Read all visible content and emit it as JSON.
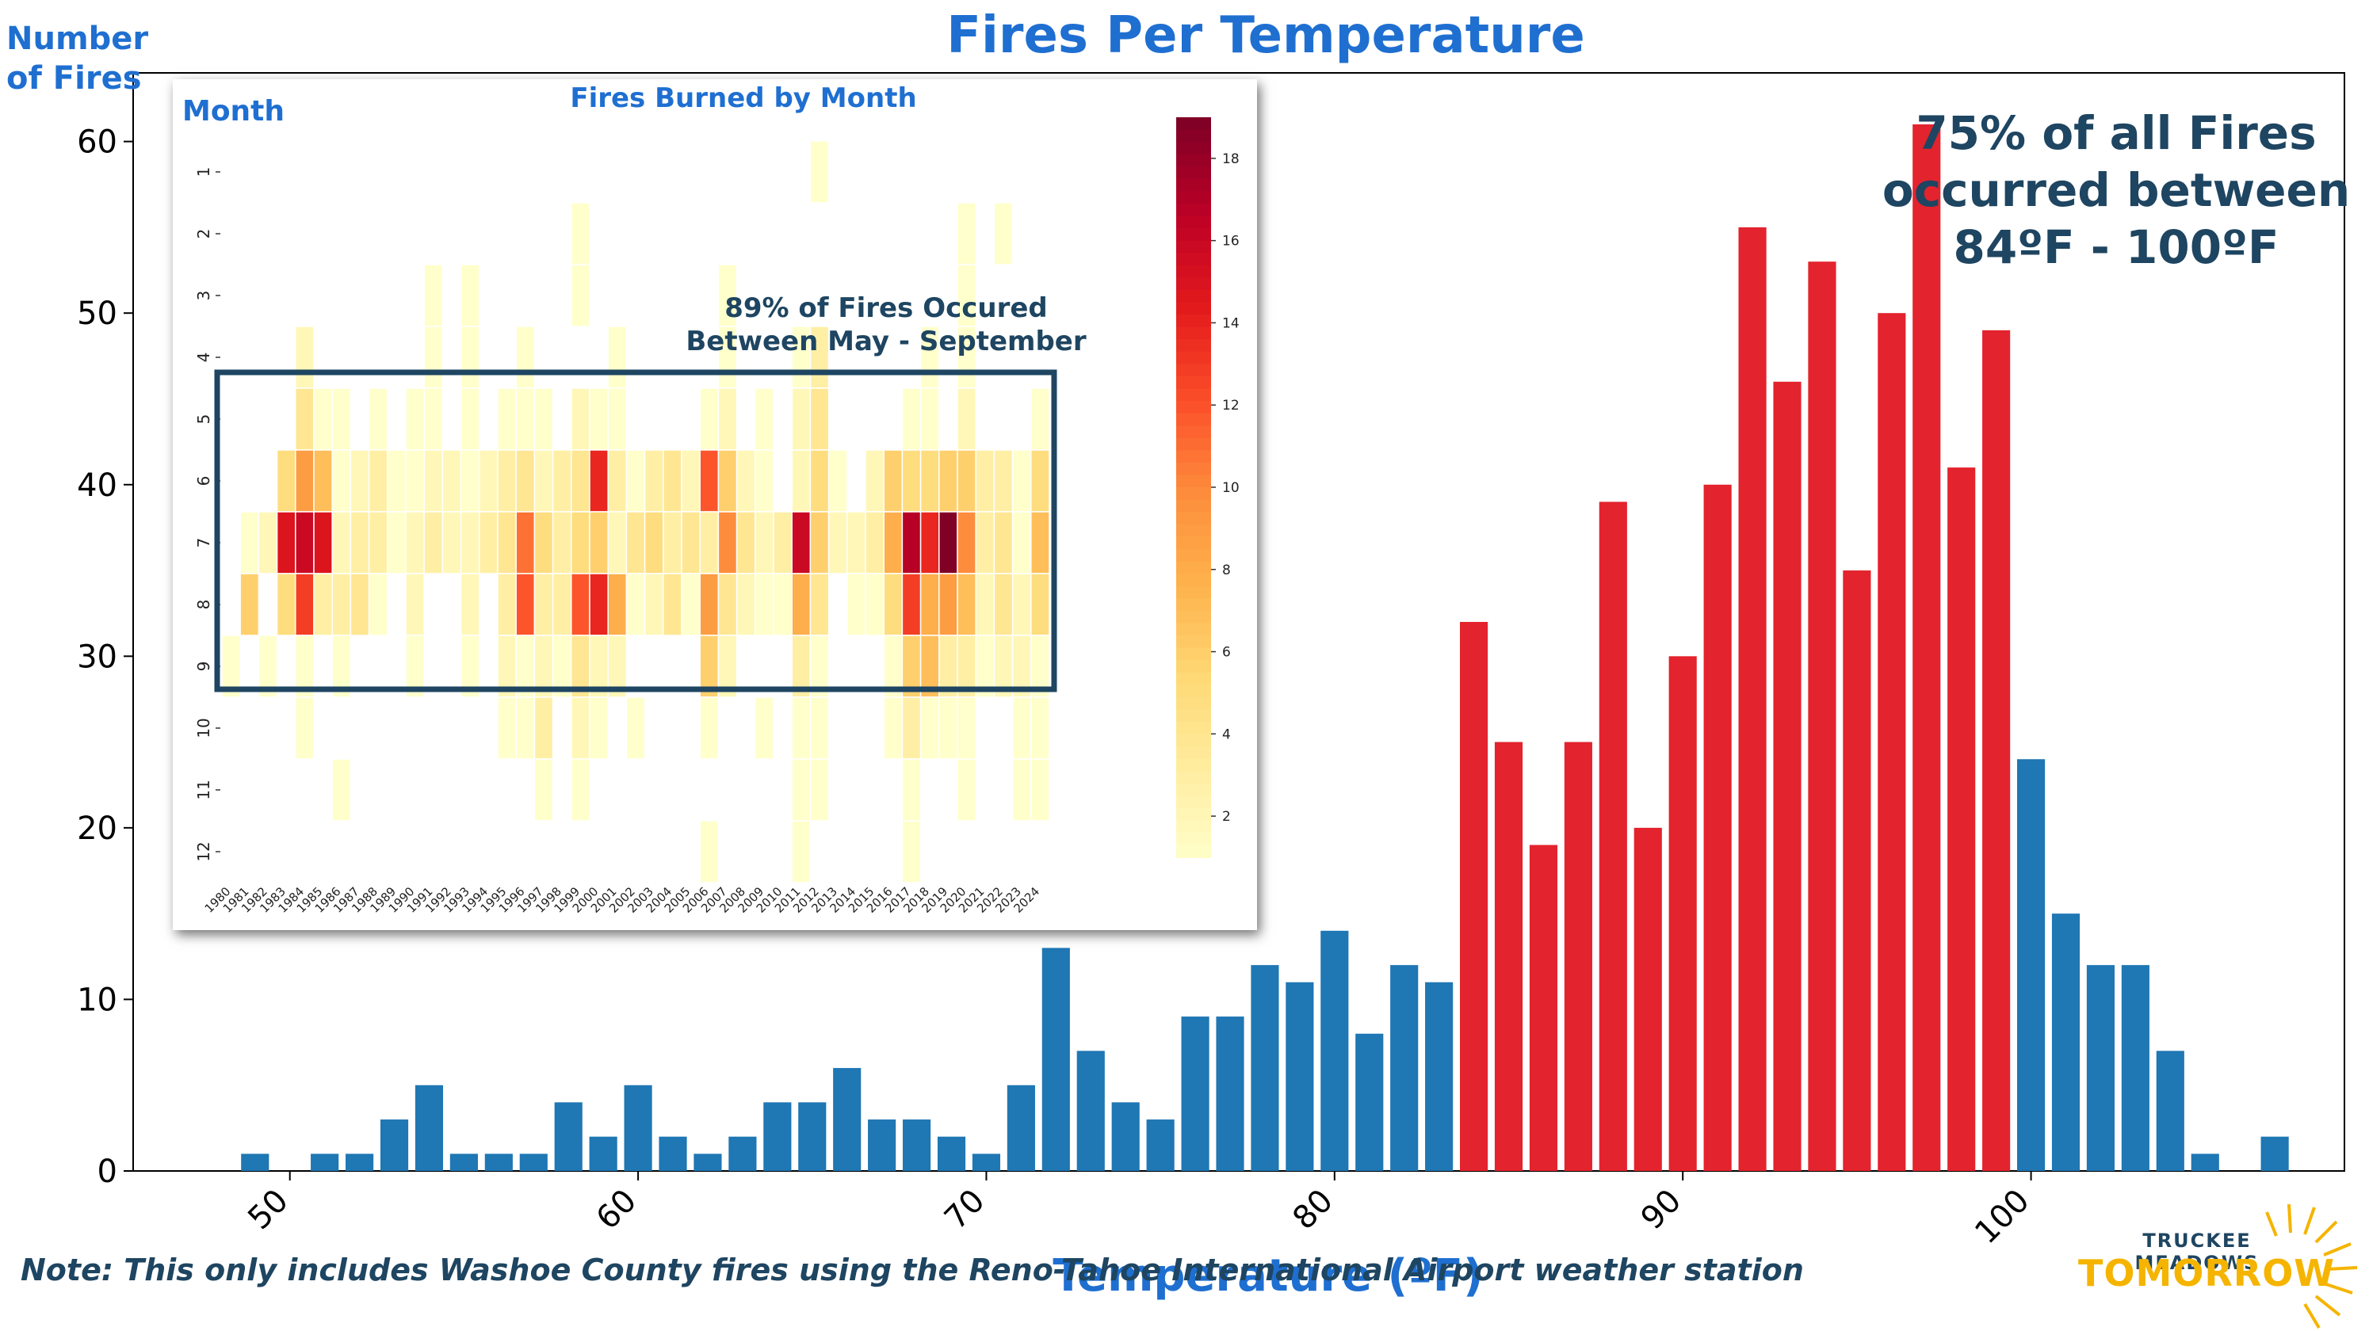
{
  "chart_data": [
    {
      "type": "bar",
      "title": "Fires Per Temperature",
      "xlabel": "Temperature (ºF)",
      "ylabel": "Number\nof Fires",
      "xlim": [
        45.5,
        109
      ],
      "ylim": [
        0,
        64
      ],
      "xticks": [
        50,
        60,
        70,
        80,
        90,
        100
      ],
      "yticks": [
        0,
        10,
        20,
        30,
        40,
        50,
        60
      ],
      "highlight_range": [
        84,
        99
      ],
      "colors": {
        "default": "#1f77b4",
        "highlight": "#e3232d"
      },
      "x": [
        49,
        50,
        51,
        52,
        53,
        54,
        55,
        56,
        57,
        58,
        59,
        60,
        61,
        62,
        63,
        64,
        65,
        66,
        67,
        68,
        69,
        70,
        71,
        72,
        73,
        74,
        75,
        76,
        77,
        78,
        79,
        80,
        81,
        82,
        83,
        84,
        85,
        86,
        87,
        88,
        89,
        90,
        91,
        92,
        93,
        94,
        95,
        96,
        97,
        98,
        99,
        100,
        101,
        102,
        103,
        104,
        105,
        106,
        107
      ],
      "values": [
        1,
        0,
        1,
        1,
        3,
        5,
        1,
        1,
        1,
        4,
        2,
        5,
        2,
        1,
        2,
        4,
        4,
        6,
        3,
        3,
        2,
        1,
        5,
        13,
        7,
        4,
        3,
        9,
        9,
        12,
        11,
        14,
        8,
        12,
        11,
        32,
        25,
        19,
        25,
        39,
        20,
        30,
        40,
        55,
        46,
        53,
        35,
        50,
        61,
        41,
        49,
        24,
        15,
        12,
        12,
        7,
        1,
        0,
        2
      ],
      "annotation": "75% of all Fires occurred between 84ºF - 100ºF"
    },
    {
      "type": "heatmap",
      "title": "Fires Burned by Month",
      "ylabel": "Month",
      "x": [
        "1980",
        "1981",
        "1982",
        "1983",
        "1984",
        "1985",
        "1986",
        "1987",
        "1988",
        "1989",
        "1990",
        "1991",
        "1992",
        "1993",
        "1994",
        "1995",
        "1996",
        "1997",
        "1998",
        "1999",
        "2000",
        "2001",
        "2002",
        "2003",
        "2004",
        "2005",
        "2006",
        "2007",
        "2008",
        "2009",
        "2010",
        "2011",
        "2012",
        "2013",
        "2014",
        "2015",
        "2016",
        "2017",
        "2018",
        "2019",
        "2020",
        "2021",
        "2022",
        "2023",
        "2024"
      ],
      "y": [
        "1",
        "2",
        "3",
        "4",
        "5",
        "6",
        "7",
        "8",
        "9",
        "10",
        "11",
        "12"
      ],
      "colorbar_ticks": [
        2,
        4,
        6,
        8,
        10,
        12,
        14,
        16,
        18
      ],
      "vmin": 1,
      "vmax": 19,
      "colormap": "YlOrRd",
      "values": [
        [
          0,
          0,
          0,
          0,
          0,
          0,
          0,
          0,
          0,
          0,
          0,
          0,
          0,
          0,
          0,
          0,
          0,
          0,
          0,
          0,
          0,
          0,
          0,
          0,
          0,
          0,
          0,
          0,
          0,
          0,
          0,
          0,
          1,
          0,
          0,
          0,
          0,
          0,
          0,
          0,
          0,
          0,
          0,
          0,
          0
        ],
        [
          0,
          0,
          0,
          0,
          0,
          0,
          0,
          0,
          0,
          0,
          0,
          0,
          0,
          0,
          0,
          0,
          0,
          0,
          0,
          1,
          0,
          0,
          0,
          0,
          0,
          0,
          0,
          0,
          0,
          0,
          0,
          0,
          0,
          0,
          0,
          0,
          0,
          0,
          0,
          0,
          1,
          0,
          1,
          0,
          0
        ],
        [
          0,
          0,
          0,
          0,
          0,
          0,
          0,
          0,
          0,
          0,
          0,
          1,
          0,
          1,
          0,
          0,
          0,
          0,
          0,
          1,
          0,
          0,
          0,
          0,
          0,
          0,
          0,
          1,
          0,
          0,
          0,
          0,
          0,
          0,
          0,
          0,
          0,
          0,
          0,
          0,
          1,
          0,
          0,
          0,
          0
        ],
        [
          0,
          0,
          0,
          0,
          2,
          0,
          0,
          0,
          0,
          0,
          0,
          1,
          0,
          1,
          0,
          0,
          1,
          0,
          0,
          0,
          0,
          1,
          0,
          0,
          0,
          0,
          0,
          1,
          0,
          0,
          0,
          1,
          3,
          0,
          0,
          0,
          0,
          0,
          1,
          0,
          1,
          0,
          0,
          0,
          0
        ],
        [
          0,
          0,
          0,
          0,
          4,
          1,
          1,
          0,
          1,
          0,
          1,
          1,
          0,
          1,
          0,
          1,
          1,
          1,
          0,
          2,
          1,
          1,
          0,
          0,
          0,
          0,
          1,
          2,
          0,
          1,
          0,
          2,
          4,
          0,
          0,
          0,
          0,
          1,
          1,
          0,
          2,
          0,
          0,
          0,
          1
        ],
        [
          0,
          0,
          0,
          5,
          9,
          7,
          1,
          2,
          3,
          1,
          1,
          2,
          2,
          1,
          2,
          3,
          4,
          2,
          3,
          4,
          14,
          3,
          1,
          3,
          4,
          2,
          12,
          6,
          2,
          1,
          0,
          2,
          5,
          1,
          0,
          2,
          6,
          5,
          5,
          6,
          6,
          3,
          3,
          1,
          5
        ],
        [
          0,
          1,
          2,
          15,
          16,
          15,
          2,
          3,
          3,
          1,
          2,
          3,
          2,
          2,
          3,
          4,
          11,
          5,
          3,
          5,
          6,
          2,
          4,
          5,
          3,
          4,
          3,
          10,
          4,
          2,
          3,
          16,
          6,
          2,
          2,
          3,
          8,
          17,
          14,
          19,
          10,
          3,
          4,
          1,
          7
        ],
        [
          0,
          6,
          0,
          5,
          13,
          3,
          3,
          4,
          1,
          0,
          2,
          0,
          0,
          2,
          0,
          3,
          12,
          3,
          3,
          12,
          14,
          8,
          1,
          2,
          4,
          1,
          9,
          4,
          2,
          1,
          1,
          8,
          4,
          0,
          1,
          1,
          5,
          13,
          8,
          9,
          7,
          2,
          4,
          2,
          5
        ],
        [
          1,
          0,
          1,
          0,
          1,
          0,
          1,
          0,
          0,
          0,
          1,
          0,
          0,
          1,
          0,
          2,
          1,
          2,
          1,
          4,
          2,
          2,
          0,
          0,
          0,
          0,
          6,
          2,
          0,
          0,
          0,
          3,
          1,
          0,
          0,
          0,
          1,
          6,
          7,
          3,
          3,
          1,
          2,
          2,
          1
        ],
        [
          0,
          0,
          0,
          0,
          1,
          0,
          0,
          0,
          0,
          0,
          0,
          0,
          0,
          0,
          0,
          1,
          1,
          3,
          0,
          2,
          1,
          0,
          1,
          0,
          0,
          0,
          1,
          0,
          0,
          1,
          0,
          1,
          1,
          0,
          0,
          0,
          1,
          3,
          1,
          1,
          1,
          0,
          0,
          1,
          1
        ],
        [
          0,
          0,
          0,
          0,
          0,
          0,
          1,
          0,
          0,
          0,
          0,
          0,
          0,
          0,
          0,
          0,
          0,
          1,
          0,
          1,
          0,
          0,
          0,
          0,
          0,
          0,
          0,
          0,
          0,
          0,
          0,
          1,
          1,
          0,
          0,
          0,
          0,
          1,
          0,
          0,
          1,
          0,
          0,
          1,
          1
        ],
        [
          0,
          0,
          0,
          0,
          0,
          0,
          0,
          0,
          0,
          0,
          0,
          0,
          0,
          0,
          0,
          0,
          0,
          0,
          0,
          0,
          0,
          0,
          0,
          0,
          0,
          0,
          1,
          0,
          0,
          0,
          0,
          1,
          0,
          0,
          0,
          0,
          0,
          1,
          0,
          0,
          0,
          0,
          0,
          0,
          0
        ]
      ],
      "highlight_rows": [
        "5",
        "9"
      ],
      "annotation": "89% of Fires Occured Between May - September"
    }
  ],
  "note": {
    "prefix": "Note",
    "text": ": This only includes Washoe County fires using the Reno-Tahoe International Airport weather station"
  },
  "logo": {
    "line1": "TRUCKEE MEADOWS",
    "line2": "TOMORROW"
  }
}
